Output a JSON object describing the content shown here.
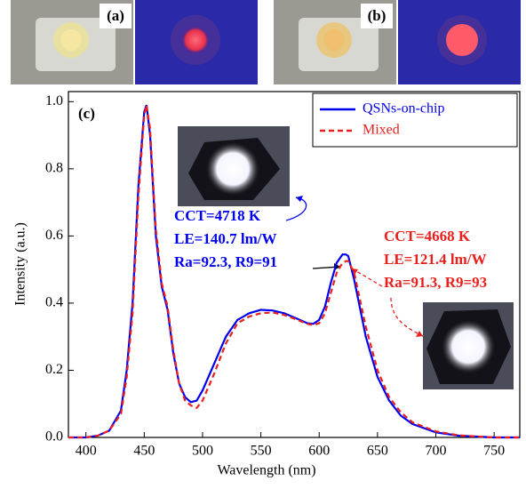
{
  "panel_labels": [
    "(a)",
    "(b)"
  ],
  "chart_data": {
    "type": "line",
    "panel_label": "(c)",
    "x_label": "Wavelength (nm)",
    "y_label": "Intensity (a.u.)",
    "x": [
      385,
      400,
      410,
      420,
      430,
      435,
      440,
      445,
      450,
      452,
      455,
      460,
      465,
      470,
      475,
      480,
      485,
      490,
      495,
      500,
      510,
      520,
      530,
      540,
      550,
      560,
      570,
      580,
      590,
      595,
      600,
      605,
      610,
      615,
      620,
      623,
      625,
      630,
      640,
      650,
      660,
      670,
      680,
      700,
      720,
      750,
      772
    ],
    "series": [
      {
        "name": "QSNs-on-chip",
        "color": "#0000ee",
        "linestyle": "solid",
        "values": [
          0,
          0,
          0.005,
          0.02,
          0.08,
          0.2,
          0.4,
          0.75,
          0.97,
          0.99,
          0.9,
          0.6,
          0.45,
          0.38,
          0.25,
          0.16,
          0.12,
          0.105,
          0.11,
          0.14,
          0.22,
          0.3,
          0.35,
          0.37,
          0.38,
          0.378,
          0.37,
          0.355,
          0.34,
          0.338,
          0.35,
          0.39,
          0.46,
          0.52,
          0.545,
          0.545,
          0.54,
          0.47,
          0.3,
          0.18,
          0.11,
          0.065,
          0.04,
          0.015,
          0.005,
          0,
          0
        ]
      },
      {
        "name": "Mixed",
        "color": "#e8201e",
        "linestyle": "dashed",
        "values": [
          0,
          0,
          0.005,
          0.02,
          0.07,
          0.18,
          0.37,
          0.72,
          0.96,
          0.99,
          0.92,
          0.62,
          0.46,
          0.39,
          0.26,
          0.16,
          0.11,
          0.095,
          0.088,
          0.11,
          0.19,
          0.28,
          0.34,
          0.36,
          0.37,
          0.372,
          0.365,
          0.352,
          0.338,
          0.335,
          0.34,
          0.37,
          0.43,
          0.49,
          0.52,
          0.525,
          0.525,
          0.49,
          0.33,
          0.2,
          0.12,
          0.075,
          0.045,
          0.018,
          0.006,
          0,
          0
        ]
      }
    ],
    "xlim": [
      385,
      772
    ],
    "ylim": [
      0,
      1.03
    ],
    "xticks": [
      400,
      450,
      500,
      550,
      600,
      650,
      700,
      750
    ],
    "yticks": [
      {
        "value": 0,
        "label": "0.0"
      },
      0.2,
      0.4,
      0.6,
      0.8,
      {
        "value": 1,
        "label": "1.0"
      }
    ],
    "legend": "upper right",
    "annotations": [
      {
        "lines": [
          "CCT=4718 K",
          "LE=140.7 lm/W",
          "Ra=92.3, R9=91"
        ],
        "color": "#0000ee"
      },
      {
        "lines": [
          "CCT=4668 K",
          "LE=121.4 lm/W",
          "Ra=91.3, R9=93"
        ],
        "color": "#e8201e"
      }
    ]
  }
}
